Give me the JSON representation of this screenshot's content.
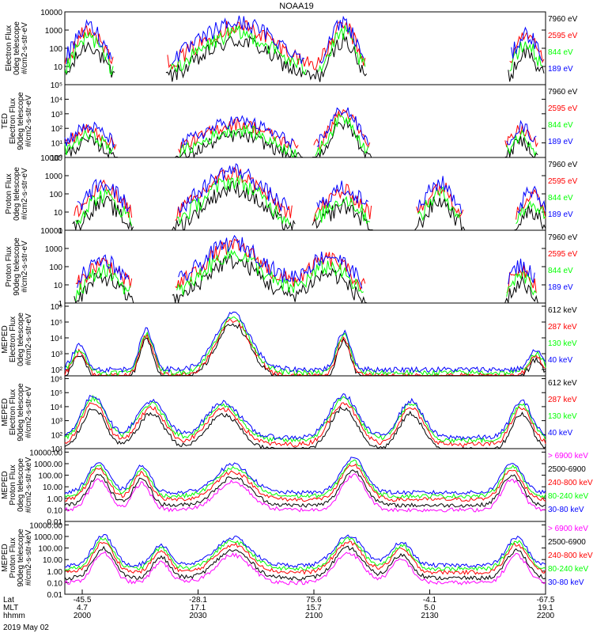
{
  "chart_data": {
    "type": "line",
    "title": "NOAA19",
    "date_label": "2019 May 02",
    "time_axis": {
      "row_labels": [
        "Lat",
        "MLT",
        "hhmm"
      ],
      "ticks": [
        {
          "lat": "-45.5",
          "mlt": "4.7",
          "hhmm": "2000"
        },
        {
          "lat": "-28.1",
          "mlt": "17.1",
          "hhmm": "2030"
        },
        {
          "lat": "75.6",
          "mlt": "15.7",
          "hhmm": "2100"
        },
        {
          "lat": "-4.1",
          "mlt": "5.0",
          "hhmm": "2130"
        },
        {
          "lat": "-67.5",
          "mlt": "19.1",
          "hhmm": "2200"
        }
      ]
    },
    "panels": [
      {
        "ylabel": [
          "Electron Flux",
          "0deg telescope",
          "#/cm2-s-str-eV"
        ],
        "ticks": [
          {
            "label": "10000",
            "exp": 4
          },
          {
            "label": "1000",
            "exp": 3
          },
          {
            "label": "100",
            "exp": 2
          },
          {
            "label": "10",
            "exp": 1
          }
        ],
        "ylim_log": [
          0,
          4
        ],
        "series": [
          {
            "name": "7960 eV",
            "color": "#000000"
          },
          {
            "name": "2595 eV",
            "color": "#ff0000"
          },
          {
            "name": "844 eV",
            "color": "#00ff00"
          },
          {
            "name": "189 eV",
            "color": "#0000ff"
          }
        ]
      },
      {
        "ylabel": [
          "TED",
          "Electron Flux",
          "90deg telescope",
          "#/cm2-s-str-eV"
        ],
        "ticks": [
          {
            "label": "10⁵",
            "exp": 5
          },
          {
            "label": "10⁴",
            "exp": 4
          },
          {
            "label": "10³",
            "exp": 3
          },
          {
            "label": "10²",
            "exp": 2
          },
          {
            "label": "10¹",
            "exp": 1
          },
          {
            "label": "10⁰",
            "exp": 0
          }
        ],
        "ylim_log": [
          0,
          5
        ],
        "series": [
          {
            "name": "7960 eV",
            "color": "#000000"
          },
          {
            "name": "2595 eV",
            "color": "#ff0000"
          },
          {
            "name": "844 eV",
            "color": "#00ff00"
          },
          {
            "name": "189 eV",
            "color": "#0000ff"
          }
        ]
      },
      {
        "ylabel": [
          "Proton Flux",
          "0deg telescope",
          "#/cm2-s-str-eV"
        ],
        "ticks": [
          {
            "label": "10000",
            "exp": 4
          },
          {
            "label": "1000",
            "exp": 3
          },
          {
            "label": "100",
            "exp": 2
          },
          {
            "label": "10",
            "exp": 1
          },
          {
            "label": "1",
            "exp": 0
          }
        ],
        "ylim_log": [
          0,
          4
        ],
        "series": [
          {
            "name": "7960 eV",
            "color": "#000000"
          },
          {
            "name": "2595 eV",
            "color": "#ff0000"
          },
          {
            "name": "844 eV",
            "color": "#00ff00"
          },
          {
            "name": "189 eV",
            "color": "#0000ff"
          }
        ]
      },
      {
        "ylabel": [
          "Proton Flux",
          "90deg telescope",
          "#/cm2-s-str-eV"
        ],
        "ticks": [
          {
            "label": "10000",
            "exp": 4
          },
          {
            "label": "1000",
            "exp": 3
          },
          {
            "label": "100",
            "exp": 2
          },
          {
            "label": "10",
            "exp": 1
          },
          {
            "label": "1",
            "exp": 0
          }
        ],
        "ylim_log": [
          0,
          4
        ],
        "series": [
          {
            "name": "7960 eV",
            "color": "#000000"
          },
          {
            "name": "2595 eV",
            "color": "#ff0000"
          },
          {
            "name": "844 eV",
            "color": "#00ff00"
          },
          {
            "name": "189 eV",
            "color": "#0000ff"
          }
        ]
      },
      {
        "ylabel": [
          "MEPED",
          "Electron Flux",
          "0deg telescope",
          "#/cm2-s-str-eV"
        ],
        "ticks": [
          {
            "label": "10⁶",
            "exp": 6
          },
          {
            "label": "10⁵",
            "exp": 5
          },
          {
            "label": "10⁴",
            "exp": 4
          },
          {
            "label": "10³",
            "exp": 3
          },
          {
            "label": "10²",
            "exp": 2
          }
        ],
        "ylim_log": [
          1.6,
          6.2
        ],
        "series": [
          {
            "name": "612 keV",
            "color": "#000000"
          },
          {
            "name": "287 keV",
            "color": "#ff0000"
          },
          {
            "name": "130 keV",
            "color": "#00ff00"
          },
          {
            "name": "40 keV",
            "color": "#0000ff"
          }
        ]
      },
      {
        "ylabel": [
          "MEPED",
          "Electron Flux",
          "90deg telescope",
          "#/cm2-s-str-eV"
        ],
        "ticks": [
          {
            "label": "10⁶",
            "exp": 6
          },
          {
            "label": "10⁵",
            "exp": 5
          },
          {
            "label": "10⁴",
            "exp": 4
          },
          {
            "label": "10³",
            "exp": 3
          },
          {
            "label": "10²",
            "exp": 2
          },
          {
            "label": "10¹",
            "exp": 1
          }
        ],
        "ylim_log": [
          1,
          6.2
        ],
        "series": [
          {
            "name": "612 keV",
            "color": "#000000"
          },
          {
            "name": "287 keV",
            "color": "#ff0000"
          },
          {
            "name": "130 keV",
            "color": "#00ff00"
          },
          {
            "name": "40 keV",
            "color": "#0000ff"
          }
        ]
      },
      {
        "ylabel": [
          "MEPED",
          "Proton Flux",
          "0deg telescope",
          "#/cm2-s-str-keV"
        ],
        "ticks": [
          {
            "label": "10000.00",
            "exp": 4
          },
          {
            "label": "1000.00",
            "exp": 3
          },
          {
            "label": "100.00",
            "exp": 2
          },
          {
            "label": "10.00",
            "exp": 1
          },
          {
            "label": "1.00",
            "exp": 0
          },
          {
            "label": "0.10",
            "exp": -1
          },
          {
            "label": "0.01",
            "exp": -2
          }
        ],
        "ylim_log": [
          -2,
          4.3
        ],
        "series": [
          {
            "name": "> 6900 keV",
            "color": "#ff00ff"
          },
          {
            "name": "2500-6900",
            "color": "#000000"
          },
          {
            "name": "240-800 keV",
            "color": "#ff0000"
          },
          {
            "name": "80-240 keV",
            "color": "#00ff00"
          },
          {
            "name": "30-80 keV",
            "color": "#0000ff"
          }
        ]
      },
      {
        "ylabel": [
          "MEPED",
          "Proton Flux",
          "90deg telescope",
          "#/cm2-s-str-keV"
        ],
        "ticks": [
          {
            "label": "10000.00",
            "exp": 4
          },
          {
            "label": "1000.00",
            "exp": 3
          },
          {
            "label": "100.00",
            "exp": 2
          },
          {
            "label": "10.00",
            "exp": 1
          },
          {
            "label": "1.00",
            "exp": 0
          },
          {
            "label": "0.10",
            "exp": -1
          },
          {
            "label": "0.01",
            "exp": -2
          }
        ],
        "ylim_log": [
          -2,
          4.3
        ],
        "series": [
          {
            "name": "> 6900 keV",
            "color": "#ff00ff"
          },
          {
            "name": "2500-6900",
            "color": "#000000"
          },
          {
            "name": "240-800 keV",
            "color": "#ff0000"
          },
          {
            "name": "80-240 keV",
            "color": "#00ff00"
          },
          {
            "name": "30-80 keV",
            "color": "#0000ff"
          }
        ]
      }
    ]
  }
}
